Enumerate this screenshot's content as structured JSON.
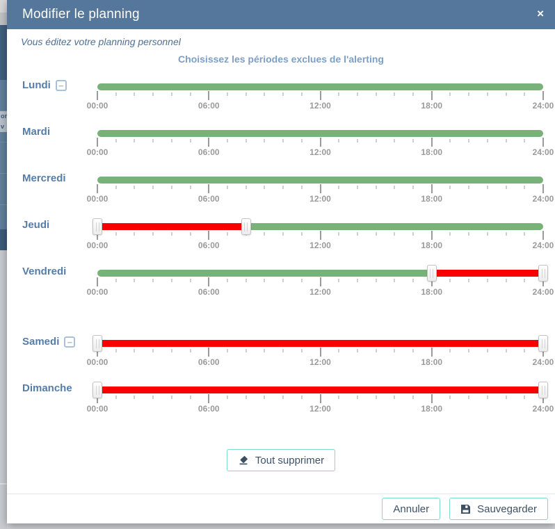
{
  "modal": {
    "title": "Modifier le planning",
    "close_icon": "×",
    "subtitle": "Vous éditez votre planning personnel",
    "heading": "Choisissez les périodes exclues de l'alerting",
    "clear_all_label": "Tout supprimer",
    "footer": {
      "cancel_label": "Annuler",
      "save_label": "Sauvegarder"
    }
  },
  "colors": {
    "header_bg": "#54779b",
    "included_green": "#79b279",
    "excluded_red": "#f90000",
    "button_border_teal": "#7fd9d0",
    "day_label_blue": "#567da8",
    "heading_blue": "#7e9ec3",
    "tick_gray": "#9a9a9a"
  },
  "slider": {
    "min_hour": 0,
    "max_hour": 24,
    "minor_tick_every_hours": 1,
    "major_tick_every_hours": 6,
    "tick_labels": [
      "00:00",
      "06:00",
      "12:00",
      "18:00",
      "24:00"
    ]
  },
  "days": [
    {
      "label": "Lundi",
      "collapsible": true,
      "extra_gap": false,
      "segments": [
        {
          "from": 0,
          "to": 24,
          "type": "included"
        }
      ],
      "handles": []
    },
    {
      "label": "Mardi",
      "collapsible": false,
      "extra_gap": false,
      "segments": [
        {
          "from": 0,
          "to": 24,
          "type": "included"
        }
      ],
      "handles": []
    },
    {
      "label": "Mercredi",
      "collapsible": false,
      "extra_gap": false,
      "segments": [
        {
          "from": 0,
          "to": 24,
          "type": "included"
        }
      ],
      "handles": []
    },
    {
      "label": "Jeudi",
      "collapsible": false,
      "extra_gap": false,
      "segments": [
        {
          "from": 0,
          "to": 8,
          "type": "excluded"
        },
        {
          "from": 8,
          "to": 24,
          "type": "included"
        }
      ],
      "handles": [
        0,
        8
      ]
    },
    {
      "label": "Vendredi",
      "collapsible": false,
      "extra_gap": false,
      "segments": [
        {
          "from": 0,
          "to": 18,
          "type": "included"
        },
        {
          "from": 18,
          "to": 24,
          "type": "excluded"
        }
      ],
      "handles": [
        18,
        24
      ]
    },
    {
      "label": "Samedi",
      "collapsible": true,
      "extra_gap": true,
      "segments": [
        {
          "from": 0,
          "to": 24,
          "type": "excluded"
        }
      ],
      "handles": [
        0,
        24
      ]
    },
    {
      "label": "Dimanche",
      "collapsible": false,
      "extra_gap": false,
      "segments": [
        {
          "from": 0,
          "to": 24,
          "type": "excluded"
        }
      ],
      "handles": [
        0,
        24
      ]
    }
  ],
  "background": {
    "fragments": [
      "on",
      "v"
    ]
  }
}
